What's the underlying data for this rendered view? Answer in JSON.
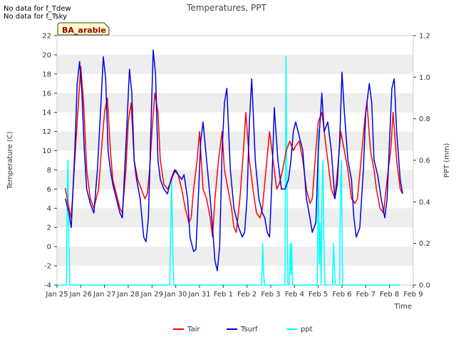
{
  "notes": [
    "No data for f_Tdew",
    "No data for f_Tsky"
  ],
  "chart_data": {
    "type": "line",
    "title": "Temperatures, PPT",
    "xlabel": "Time",
    "ylabel_left": "Temperature (C)",
    "ylabel_right": "PPT (mm)",
    "site_label": "BA_arable",
    "x_unit": "days since Jan 25",
    "x_ticks": [
      {
        "v": 0,
        "label": "Jan 25"
      },
      {
        "v": 1,
        "label": "Jan 26"
      },
      {
        "v": 2,
        "label": "Jan 27"
      },
      {
        "v": 3,
        "label": "Jan 28"
      },
      {
        "v": 4,
        "label": "Jan 29"
      },
      {
        "v": 5,
        "label": "Jan 30"
      },
      {
        "v": 6,
        "label": "Jan 31"
      },
      {
        "v": 7,
        "label": "Feb 1"
      },
      {
        "v": 8,
        "label": "Feb 2"
      },
      {
        "v": 9,
        "label": "Feb 3"
      },
      {
        "v": 10,
        "label": "Feb 4"
      },
      {
        "v": 11,
        "label": "Feb 5"
      },
      {
        "v": 12,
        "label": "Feb 6"
      },
      {
        "v": 13,
        "label": "Feb 7"
      },
      {
        "v": 14,
        "label": "Feb 8"
      },
      {
        "v": 15,
        "label": "Feb 9"
      }
    ],
    "xlim": [
      0,
      15
    ],
    "ylim_left": [
      -4,
      22
    ],
    "y_ticks_left": [
      -4,
      -2,
      0,
      2,
      4,
      6,
      8,
      10,
      12,
      14,
      16,
      18,
      20,
      22
    ],
    "ylim_right": [
      0,
      1.2
    ],
    "y_ticks_right": [
      "0.0",
      "0.2",
      "0.4",
      "0.6",
      "0.8",
      "1.0",
      "1.2"
    ],
    "grid": "horizontal bands",
    "legend_position": "bottom-center",
    "series": [
      {
        "name": "Tair",
        "color": "#ff0000",
        "axis": "left",
        "x": [
          0.35,
          0.5,
          0.6,
          0.75,
          0.85,
          1.0,
          1.12,
          1.25,
          1.4,
          1.55,
          1.75,
          1.9,
          2.0,
          2.12,
          2.25,
          2.35,
          2.5,
          2.65,
          2.75,
          2.9,
          3.0,
          3.12,
          3.25,
          3.4,
          3.55,
          3.7,
          3.8,
          3.9,
          4.0,
          4.12,
          4.25,
          4.35,
          4.5,
          4.65,
          4.75,
          4.9,
          5.0,
          5.1,
          5.25,
          5.4,
          5.55,
          5.65,
          5.75,
          5.9,
          6.0,
          6.15,
          6.3,
          6.45,
          6.55,
          6.65,
          6.8,
          6.95,
          7.05,
          7.2,
          7.35,
          7.45,
          7.55,
          7.7,
          7.85,
          7.95,
          8.1,
          8.25,
          8.4,
          8.55,
          8.65,
          8.8,
          8.95,
          9.1,
          9.25,
          9.35,
          9.5,
          9.65,
          9.8,
          9.95,
          10.05,
          10.2,
          10.35,
          10.5,
          10.65,
          10.75,
          10.9,
          11.0,
          11.15,
          11.3,
          11.4,
          11.55,
          11.7,
          11.85,
          11.95,
          12.1,
          12.25,
          12.4,
          12.55,
          12.65,
          12.8,
          12.95,
          13.05,
          13.2,
          13.35,
          13.45,
          13.6,
          13.75,
          13.9,
          14.05,
          14.15,
          14.3,
          14.45,
          14.55
        ],
        "values": [
          6.1,
          4.0,
          3.0,
          9.0,
          13.0,
          18.8,
          15.0,
          8.0,
          5.0,
          4.0,
          6.0,
          11.0,
          14.0,
          15.5,
          10.0,
          7.0,
          5.5,
          4.0,
          3.5,
          8.0,
          13.0,
          15.0,
          9.0,
          7.0,
          6.0,
          5.0,
          5.5,
          8.0,
          12.0,
          16.0,
          14.0,
          9.0,
          6.5,
          6.0,
          6.5,
          7.5,
          8.0,
          7.5,
          6.0,
          4.0,
          2.5,
          3.0,
          6.0,
          9.0,
          12.0,
          6.0,
          5.0,
          3.0,
          1.0,
          5.0,
          9.0,
          12.0,
          8.0,
          6.0,
          4.0,
          2.0,
          1.5,
          5.0,
          10.0,
          14.0,
          9.0,
          6.0,
          3.5,
          3.0,
          4.0,
          8.0,
          12.0,
          9.0,
          6.0,
          6.5,
          8.0,
          10.0,
          11.0,
          10.0,
          10.5,
          11.0,
          9.0,
          6.0,
          4.5,
          5.0,
          10.0,
          13.0,
          14.0,
          11.0,
          9.0,
          6.0,
          5.0,
          9.0,
          12.0,
          10.0,
          8.0,
          5.0,
          4.5,
          5.0,
          9.0,
          13.0,
          15.0,
          10.0,
          8.0,
          6.0,
          4.0,
          3.5,
          7.0,
          10.0,
          14.0,
          9.0,
          6.0,
          5.5
        ]
      },
      {
        "name": "Tsurf",
        "color": "#0000dd",
        "axis": "left",
        "x": [
          0.35,
          0.5,
          0.6,
          0.75,
          0.85,
          0.95,
          1.05,
          1.15,
          1.25,
          1.4,
          1.55,
          1.7,
          1.85,
          1.95,
          2.05,
          2.15,
          2.25,
          2.35,
          2.5,
          2.65,
          2.75,
          2.85,
          2.95,
          3.05,
          3.15,
          3.25,
          3.35,
          3.5,
          3.65,
          3.75,
          3.85,
          3.95,
          4.05,
          4.15,
          4.25,
          4.35,
          4.5,
          4.65,
          4.8,
          4.95,
          5.1,
          5.25,
          5.35,
          5.5,
          5.6,
          5.75,
          5.85,
          5.95,
          6.05,
          6.15,
          6.3,
          6.45,
          6.55,
          6.65,
          6.75,
          6.85,
          6.95,
          7.05,
          7.15,
          7.3,
          7.45,
          7.55,
          7.65,
          7.8,
          7.9,
          8.0,
          8.1,
          8.2,
          8.35,
          8.5,
          8.65,
          8.75,
          8.85,
          8.95,
          9.05,
          9.15,
          9.3,
          9.45,
          9.6,
          9.75,
          9.85,
          9.95,
          10.05,
          10.2,
          10.35,
          10.5,
          10.65,
          10.75,
          10.9,
          11.0,
          11.15,
          11.25,
          11.4,
          11.55,
          11.7,
          11.8,
          11.9,
          12.0,
          12.1,
          12.25,
          12.4,
          12.5,
          12.6,
          12.75,
          12.9,
          13.0,
          13.15,
          13.25,
          13.35,
          13.5,
          13.65,
          13.8,
          13.9,
          14.0,
          14.1,
          14.2,
          14.3,
          14.45,
          14.55
        ],
        "values": [
          5.0,
          3.5,
          2.0,
          10.0,
          17.0,
          19.3,
          16.0,
          10.0,
          6.0,
          4.5,
          3.5,
          8.0,
          15.0,
          19.8,
          17.5,
          10.0,
          8.0,
          6.5,
          5.0,
          3.5,
          3.0,
          8.0,
          13.0,
          18.5,
          16.0,
          9.0,
          7.0,
          5.0,
          1.0,
          0.5,
          3.0,
          12.0,
          20.5,
          18.0,
          9.0,
          7.0,
          6.0,
          5.5,
          7.0,
          8.0,
          7.5,
          7.0,
          7.5,
          5.0,
          1.0,
          -0.5,
          -0.3,
          5.0,
          11.0,
          13.0,
          9.0,
          5.0,
          2.0,
          -1.5,
          -2.5,
          0.0,
          10.0,
          15.0,
          16.5,
          8.0,
          4.0,
          3.0,
          2.0,
          1.0,
          1.5,
          5.0,
          13.0,
          17.5,
          9.0,
          5.0,
          3.5,
          3.0,
          1.5,
          1.0,
          7.0,
          14.5,
          9.0,
          6.0,
          6.0,
          7.0,
          9.0,
          12.0,
          13.0,
          11.5,
          10.0,
          5.0,
          3.0,
          1.5,
          2.5,
          10.0,
          16.0,
          12.0,
          13.0,
          10.0,
          5.0,
          6.5,
          11.0,
          18.2,
          14.0,
          9.0,
          7.0,
          3.0,
          1.0,
          2.0,
          8.0,
          14.0,
          17.0,
          15.0,
          9.0,
          7.5,
          5.0,
          3.0,
          5.0,
          11.0,
          16.5,
          17.5,
          12.0,
          7.0,
          5.5
        ]
      },
      {
        "name": "ppt",
        "color": "#00ffff",
        "axis": "right",
        "x": [
          0.0,
          0.4,
          0.43,
          0.46,
          0.5,
          0.55,
          4.75,
          4.79,
          4.83,
          4.87,
          4.92,
          8.62,
          8.66,
          8.7,
          8.74,
          9.6,
          9.64,
          9.68,
          9.72,
          9.78,
          9.82,
          9.85,
          9.88,
          9.92,
          10.96,
          11.0,
          11.04,
          11.08,
          11.12,
          11.16,
          11.2,
          11.24,
          11.28,
          11.32,
          11.6,
          11.64,
          11.68,
          11.72,
          11.9,
          11.94,
          11.98,
          12.02,
          14.45
        ],
        "values": [
          0,
          0,
          0.4,
          0.6,
          0.2,
          0,
          0,
          0.3,
          0.5,
          0.2,
          0,
          0,
          0.2,
          0.05,
          0,
          0,
          1.1,
          0.5,
          0,
          0,
          0.2,
          0.05,
          0.2,
          0,
          0,
          0.75,
          0.1,
          0.3,
          0,
          0.45,
          0.6,
          0.2,
          0,
          0,
          0,
          0.2,
          0.1,
          0,
          0,
          0.5,
          0.6,
          0,
          0
        ]
      }
    ]
  }
}
